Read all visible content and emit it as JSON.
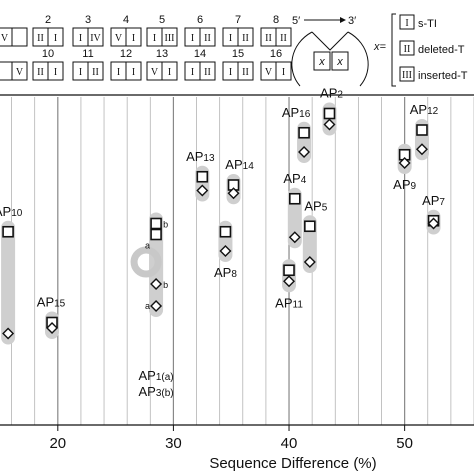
{
  "header": {
    "pairings": [
      {
        "n": "",
        "a": "V",
        "b": ""
      },
      {
        "n": "2",
        "a": "II",
        "b": "I"
      },
      {
        "n": "3",
        "a": "I",
        "b": "IV"
      },
      {
        "n": "4",
        "a": "V",
        "b": "I"
      },
      {
        "n": "5",
        "a": "I",
        "b": "III"
      },
      {
        "n": "6",
        "a": "I",
        "b": "II"
      },
      {
        "n": "7",
        "a": "I",
        "b": "II"
      },
      {
        "n": "8",
        "a": "II",
        "b": "II"
      },
      {
        "n": "",
        "a": "",
        "b": "V"
      },
      {
        "n": "10",
        "a": "II",
        "b": "I"
      },
      {
        "n": "11",
        "a": "I",
        "b": "II"
      },
      {
        "n": "12",
        "a": "I",
        "b": "I"
      },
      {
        "n": "13",
        "a": "V",
        "b": "I"
      },
      {
        "n": "14",
        "a": "I",
        "b": "II"
      },
      {
        "n": "15",
        "a": "I",
        "b": "II"
      },
      {
        "n": "16",
        "a": "V",
        "b": "I"
      }
    ],
    "diagram": {
      "left": "5′",
      "right": "3′",
      "x": "x"
    },
    "legend": {
      "eq": "x=",
      "items": [
        {
          "numeral": "I",
          "text": "s-TI"
        },
        {
          "numeral": "II",
          "text": "deleted-T"
        },
        {
          "numeral": "III",
          "text": "inserted-T"
        }
      ]
    }
  },
  "chart_data": {
    "type": "scatter",
    "xlabel": "Sequence Difference (%)",
    "xlim": [
      15,
      56
    ],
    "xticks": [
      20,
      30,
      40,
      50
    ],
    "ylim": [
      0,
      1
    ],
    "grid": true,
    "points": [
      {
        "label": "AP",
        "sub": "10",
        "x": 15.7,
        "square": 0.63,
        "diamond": 0.26
      },
      {
        "label": "AP",
        "sub": "15",
        "x": 19.5,
        "square": 0.3,
        "diamond": 0.28
      },
      {
        "label": "AP",
        "sub": "1(a)",
        "x": 28.5,
        "square": 0.62,
        "diamond": 0.36
      },
      {
        "label": "AP",
        "sub": "3(b)",
        "x": 28.5,
        "square": 0.66,
        "diamond": 0.44
      },
      {
        "label": "AP",
        "sub": "13",
        "x": 32.5,
        "square": 0.83,
        "diamond": 0.78
      },
      {
        "label": "AP",
        "sub": "14",
        "x": 35.2,
        "square": 0.8,
        "diamond": 0.77
      },
      {
        "label": "AP",
        "sub": "8",
        "x": 34.5,
        "square": 0.63,
        "diamond": 0.56
      },
      {
        "label": "AP",
        "sub": "4",
        "x": 40.5,
        "square": 0.75,
        "diamond": 0.61
      },
      {
        "label": "AP",
        "sub": "11",
        "x": 40.0,
        "square": 0.49,
        "diamond": 0.45
      },
      {
        "label": "AP",
        "sub": "5",
        "x": 41.8,
        "square": 0.65,
        "diamond": 0.52
      },
      {
        "label": "AP",
        "sub": "16",
        "x": 41.3,
        "square": 0.99,
        "diamond": 0.92
      },
      {
        "label": "AP",
        "sub": "2",
        "x": 43.5,
        "square": 1.06,
        "diamond": 1.02
      },
      {
        "label": "AP",
        "sub": "12",
        "x": 51.5,
        "square": 1.0,
        "diamond": 0.93
      },
      {
        "label": "AP",
        "sub": "9",
        "x": 50.0,
        "square": 0.91,
        "diamond": 0.88
      },
      {
        "label": "AP",
        "sub": "7",
        "x": 52.5,
        "square": 0.67,
        "diamond": 0.66
      }
    ]
  }
}
